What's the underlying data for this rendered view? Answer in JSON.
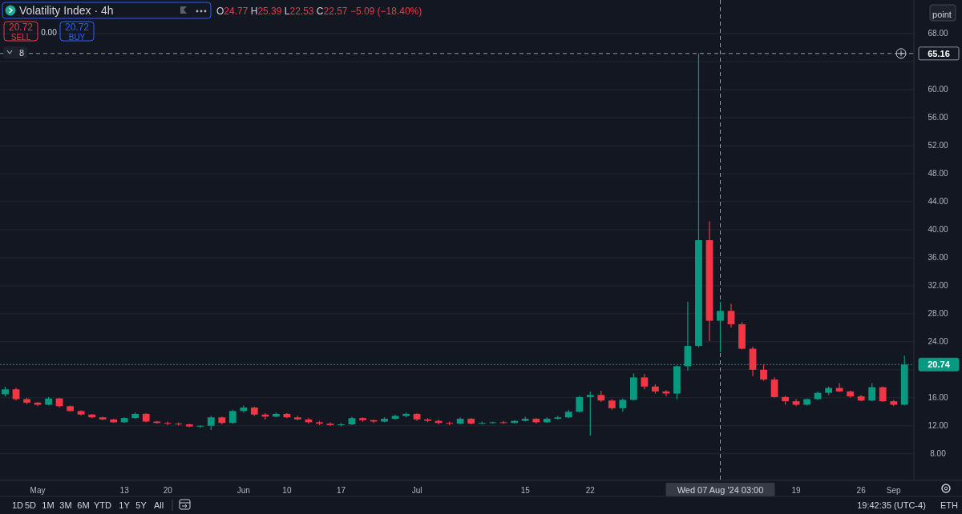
{
  "chart_data": {
    "type": "candlestick",
    "title": "Volatility Index · 4h",
    "subtitle": "O24.77 H25.39 L22.53 C22.57 −5.09 (−18.40%)",
    "categories": [
      null,
      null,
      null,
      "May",
      null,
      null,
      null,
      null,
      null,
      null,
      null,
      "13",
      null,
      null,
      null,
      "20",
      null,
      null,
      null,
      null,
      null,
      null,
      "Jun",
      null,
      null,
      null,
      "10",
      null,
      null,
      null,
      null,
      "17",
      null,
      null,
      null,
      null,
      null,
      null,
      "Jul",
      null,
      null,
      null,
      null,
      null,
      null,
      null,
      null,
      null,
      "15",
      null,
      null,
      null,
      null,
      null,
      "22",
      null,
      null,
      null,
      null,
      null,
      null,
      null,
      null,
      null,
      null,
      null,
      "Wed 07 Aug '24 03:00",
      null,
      null,
      null,
      null,
      null,
      null,
      "19",
      null,
      null,
      null,
      null,
      null,
      "26",
      null,
      null,
      "Sep",
      null
    ],
    "ohlc": [
      [
        16.5,
        17.6,
        16.2,
        17.2
      ],
      [
        17.2,
        17.4,
        15.6,
        15.8
      ],
      [
        15.8,
        16.0,
        15.1,
        15.3
      ],
      [
        15.3,
        15.4,
        14.8,
        15.0
      ],
      [
        15.0,
        16.1,
        14.9,
        15.9
      ],
      [
        15.9,
        16.0,
        14.6,
        14.8
      ],
      [
        14.8,
        14.9,
        14.0,
        14.1
      ],
      [
        14.1,
        14.2,
        13.5,
        13.6
      ],
      [
        13.6,
        13.7,
        13.1,
        13.2
      ],
      [
        13.2,
        13.3,
        12.8,
        12.9
      ],
      [
        12.9,
        13.0,
        12.4,
        12.5
      ],
      [
        12.5,
        13.2,
        12.4,
        13.1
      ],
      [
        13.1,
        13.9,
        13.0,
        13.7
      ],
      [
        13.7,
        13.8,
        12.5,
        12.6
      ],
      [
        12.6,
        12.7,
        12.3,
        12.4
      ],
      [
        12.4,
        12.6,
        12.1,
        12.3
      ],
      [
        12.3,
        12.5,
        12.0,
        12.2
      ],
      [
        12.2,
        12.3,
        11.8,
        11.9
      ],
      [
        11.9,
        12.1,
        11.7,
        12.0
      ],
      [
        12.0,
        13.4,
        11.4,
        13.2
      ],
      [
        13.2,
        13.3,
        12.2,
        12.4
      ],
      [
        12.4,
        14.3,
        12.3,
        14.1
      ],
      [
        14.1,
        14.9,
        13.9,
        14.6
      ],
      [
        14.6,
        14.7,
        13.4,
        13.6
      ],
      [
        13.6,
        13.8,
        12.9,
        13.3
      ],
      [
        13.3,
        13.9,
        13.2,
        13.7
      ],
      [
        13.7,
        13.8,
        13.1,
        13.2
      ],
      [
        13.2,
        13.4,
        12.8,
        12.9
      ],
      [
        12.9,
        13.1,
        12.3,
        12.5
      ],
      [
        12.5,
        12.7,
        12.1,
        12.3
      ],
      [
        12.3,
        12.5,
        12.0,
        12.1
      ],
      [
        12.1,
        12.4,
        11.9,
        12.2
      ],
      [
        12.2,
        13.3,
        12.1,
        13.1
      ],
      [
        13.1,
        13.2,
        12.6,
        12.8
      ],
      [
        12.8,
        12.9,
        12.4,
        12.6
      ],
      [
        12.6,
        13.2,
        12.5,
        13.0
      ],
      [
        13.0,
        13.6,
        12.9,
        13.4
      ],
      [
        13.4,
        13.9,
        13.2,
        13.7
      ],
      [
        13.7,
        13.8,
        12.7,
        12.9
      ],
      [
        12.9,
        13.1,
        12.5,
        12.7
      ],
      [
        12.7,
        12.9,
        12.2,
        12.4
      ],
      [
        12.4,
        12.6,
        12.1,
        12.3
      ],
      [
        12.3,
        13.2,
        12.2,
        13.0
      ],
      [
        13.0,
        13.1,
        12.2,
        12.3
      ],
      [
        12.3,
        12.6,
        12.2,
        12.4
      ],
      [
        12.4,
        12.6,
        12.3,
        12.5
      ],
      [
        12.5,
        12.7,
        12.3,
        12.4
      ],
      [
        12.4,
        12.8,
        12.3,
        12.7
      ],
      [
        12.7,
        13.3,
        12.6,
        13.0
      ],
      [
        13.0,
        13.1,
        12.3,
        12.5
      ],
      [
        12.5,
        13.2,
        12.4,
        13.0
      ],
      [
        13.0,
        13.4,
        12.9,
        13.2
      ],
      [
        13.2,
        14.3,
        13.1,
        14.0
      ],
      [
        14.0,
        16.3,
        13.9,
        16.1
      ],
      [
        16.1,
        16.9,
        10.6,
        16.4
      ],
      [
        16.4,
        17.0,
        15.4,
        15.6
      ],
      [
        15.6,
        15.8,
        14.3,
        14.5
      ],
      [
        14.5,
        15.9,
        14.0,
        15.7
      ],
      [
        15.7,
        19.5,
        15.6,
        18.9
      ],
      [
        18.9,
        19.4,
        17.2,
        17.6
      ],
      [
        17.6,
        17.9,
        16.6,
        16.9
      ],
      [
        16.9,
        17.1,
        16.2,
        16.6
      ],
      [
        16.6,
        20.6,
        15.8,
        20.5
      ],
      [
        20.5,
        29.7,
        19.9,
        23.4
      ],
      [
        23.4,
        65.16,
        23.2,
        38.5
      ],
      [
        38.5,
        41.2,
        24.1,
        27.0
      ],
      [
        27.0,
        29.7,
        22.5,
        28.4
      ],
      [
        28.4,
        29.4,
        26.0,
        26.5
      ],
      [
        26.5,
        26.8,
        22.9,
        23.0
      ],
      [
        23.0,
        23.3,
        19.1,
        20.0
      ],
      [
        20.0,
        20.8,
        18.4,
        18.6
      ],
      [
        18.6,
        18.9,
        16.0,
        16.1
      ],
      [
        16.1,
        16.3,
        15.0,
        15.5
      ],
      [
        15.5,
        15.8,
        14.8,
        15.0
      ],
      [
        15.0,
        15.9,
        14.9,
        15.8
      ],
      [
        15.8,
        16.9,
        15.7,
        16.7
      ],
      [
        16.7,
        17.6,
        16.4,
        17.4
      ],
      [
        17.4,
        18.1,
        16.8,
        16.9
      ],
      [
        16.9,
        17.0,
        16.0,
        16.2
      ],
      [
        16.2,
        16.4,
        15.5,
        15.6
      ],
      [
        15.6,
        18.1,
        15.5,
        17.5
      ],
      [
        17.5,
        17.6,
        15.4,
        15.5
      ],
      [
        15.5,
        15.7,
        14.8,
        15.0
      ],
      [
        15.0,
        22.0,
        14.9,
        20.74
      ]
    ],
    "colors": [
      "#089981",
      "#f23645",
      "#f23645",
      "#f23645",
      "#089981",
      "#f23645",
      "#f23645",
      "#f23645",
      "#f23645",
      "#f23645",
      "#f23645",
      "#089981",
      "#089981",
      "#f23645",
      "#f23645",
      "#f23645",
      "#f23645",
      "#f23645",
      "#089981",
      "#089981",
      "#f23645",
      "#089981",
      "#089981",
      "#f23645",
      "#f23645",
      "#089981",
      "#f23645",
      "#f23645",
      "#f23645",
      "#f23645",
      "#f23645",
      "#089981",
      "#089981",
      "#f23645",
      "#f23645",
      "#089981",
      "#089981",
      "#089981",
      "#f23645",
      "#f23645",
      "#f23645",
      "#f23645",
      "#089981",
      "#f23645",
      "#089981",
      "#089981",
      "#f23645",
      "#089981",
      "#089981",
      "#f23645",
      "#089981",
      "#089981",
      "#089981",
      "#089981",
      "#089981",
      "#f23645",
      "#f23645",
      "#089981",
      "#089981",
      "#f23645",
      "#f23645",
      "#f23645",
      "#089981",
      "#089981",
      "#089981",
      "#f23645",
      "#089981",
      "#f23645",
      "#f23645",
      "#f23645",
      "#f23645",
      "#f23645",
      "#f23645",
      "#f23645",
      "#089981",
      "#089981",
      "#089981",
      "#f23645",
      "#f23645",
      "#f23645",
      "#089981",
      "#f23645",
      "#f23645",
      "#089981"
    ],
    "ylim": [
      4.2,
      72.8
    ],
    "yticks": [
      {
        "value": 8,
        "label": "8.00"
      },
      {
        "value": 12,
        "label": "12.00"
      },
      {
        "value": 16,
        "label": "16.00"
      },
      {
        "value": 20,
        "label": null
      },
      {
        "value": 24,
        "label": "24.00"
      },
      {
        "value": 28,
        "label": "28.00"
      },
      {
        "value": 32,
        "label": "32.00"
      },
      {
        "value": 36,
        "label": "36.00"
      },
      {
        "value": 40,
        "label": "40.00"
      },
      {
        "value": 44,
        "label": "44.00"
      },
      {
        "value": 48,
        "label": "48.00"
      },
      {
        "value": 52,
        "label": "52.00"
      },
      {
        "value": 56,
        "label": "56.00"
      },
      {
        "value": 60,
        "label": "60.00"
      },
      {
        "value": 64,
        "label": null
      },
      {
        "value": 68,
        "label": "68.00"
      }
    ],
    "grid": "y",
    "ref_lines": [
      {
        "axis": "y",
        "value": 65.16,
        "label": "65.16",
        "color": "#9598a1",
        "line_style": "dashed"
      },
      {
        "axis": "y",
        "value": 20.74,
        "label": "20.74",
        "color": "#089981",
        "line_style": "dotted"
      },
      {
        "axis": "x",
        "value": "Wed 07 Aug '24 03:00",
        "color": "#9598a1",
        "line_style": "dashed"
      }
    ],
    "annotations": [
      "20.72",
      "SELL",
      "0.00",
      "20.72",
      "BUY",
      "8",
      "point",
      "1D",
      "5D",
      "1M",
      "3M",
      "6M",
      "YTD",
      "1Y",
      "5Y",
      "All",
      "19:42:35 (UTC-4)",
      "ETH"
    ]
  }
}
